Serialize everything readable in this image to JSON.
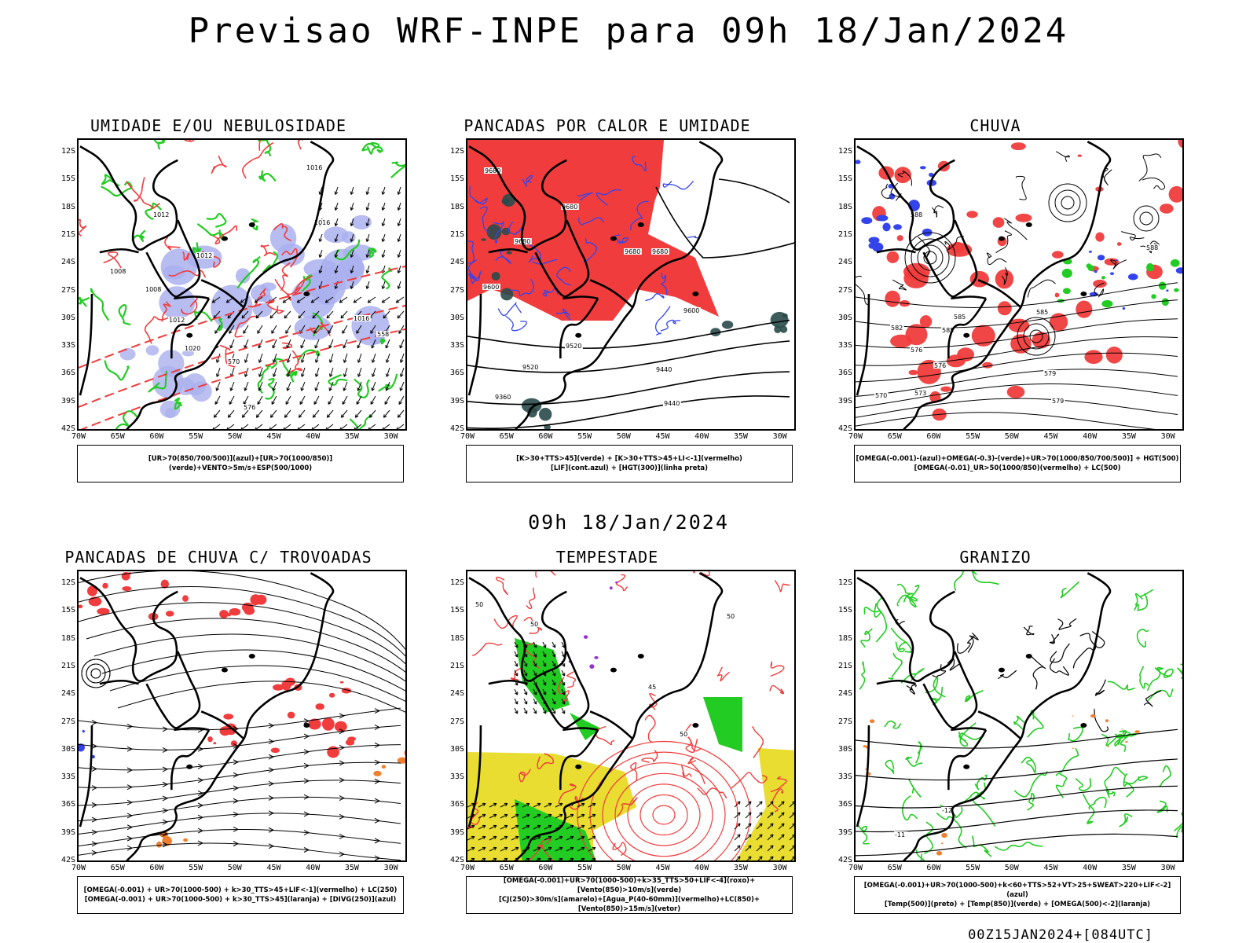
{
  "title": "Previsao WRF-INPE  para 09h 18/Jan/2024",
  "mid_title": "09h 18/Jan/2024",
  "footer": "00Z15JAN2024+[084UTC]",
  "lat_labels": [
    "12S",
    "15S",
    "18S",
    "21S",
    "24S",
    "27S",
    "30S",
    "33S",
    "36S",
    "39S",
    "42S"
  ],
  "lon_labels": [
    "70W",
    "65W",
    "60W",
    "55W",
    "50W",
    "45W",
    "40W",
    "35W",
    "30W"
  ],
  "colors": {
    "red": "#f03c3c",
    "green": "#22cc22",
    "blue": "#3344ee",
    "lilac": "#aab0ee",
    "yellow": "#e8dd30",
    "orange": "#f08030",
    "darkteal": "#2a4a4a"
  },
  "panels": [
    {
      "title": "UMIDADE E/OU NEBULOSIDADE",
      "legend_lines": [
        "[UR>70(850/700/500)](azul)+[UR>70(1000/850)](verde)+VENTO>5m/s+ESP(500/1000)"
      ],
      "contour_labels": [
        "1016",
        "1012",
        "1012",
        "1008",
        "1008",
        "1016",
        "1016",
        "1012",
        "1020",
        "576",
        "570",
        "558"
      ]
    },
    {
      "title": "PANCADAS POR CALOR E UMIDADE",
      "legend_lines": [
        "[K>30+TTS>45](verde) + [K>30+TTS>45+LI<-1](vermelho)",
        "[LIF](cont.azul) + [HGT(300)](linha preta)"
      ],
      "contour_labels": [
        "9680",
        "9680",
        "9680",
        "9680",
        "9680",
        "9600",
        "9600",
        "9520",
        "9520",
        "9440",
        "9440",
        "9360"
      ]
    },
    {
      "title": "CHUVA",
      "legend_lines": [
        "[OMEGA(-0.001)-(azul)+OMEGA(-0.3)-(verde)+UR>70(1000/850/700/500)] + HGT(500)",
        "[OMEGA(-0.01)_UR>50(1000/850)(vermelho) + LC(500)"
      ],
      "contour_labels": [
        "588",
        "588",
        "585",
        "585",
        "585",
        "582",
        "579",
        "579",
        "576",
        "576",
        "573",
        "570"
      ]
    },
    {
      "title": "PANCADAS DE CHUVA C/ TROVOADAS",
      "legend_lines": [
        "[OMEGA(-0.001) + UR>70(1000-500) + k>30_TTS>45+LIF<-1](vermelho) + LC(250)",
        "[OMEGA(-0.001) + UR>70(1000-500) + k>30_TTS>45](laranja) + [DIVG(250)](azul)"
      ],
      "contour_labels": []
    },
    {
      "title": "TEMPESTADE",
      "legend_lines": [
        "[OMEGA(-0.001)+UR>70(1000-500)+k>35_TTS>50+LIF<-4](roxo)+[Vento(850)>10m/s](verde)",
        "[CJ(250)>30m/s](amarelo)+[Agua_P(40-60mm)](vermelho)+LC(850)+[Vento(850)>15m/s](vetor)"
      ],
      "contour_labels": [
        "50",
        "50",
        "50",
        "45",
        "50"
      ]
    },
    {
      "title": "GRANIZO",
      "legend_lines": [
        "[OMEGA(-0.001)+UR>70(1000-500)+k<60+TTS>52+VT>25+SWEAT>220+LIF<-2](azul)",
        "[Temp(500)](preto) + [Temp(850)](verde) + [OMEGA(500)<-2](laranja)"
      ],
      "contour_labels": [
        "-12",
        "-11"
      ]
    }
  ]
}
